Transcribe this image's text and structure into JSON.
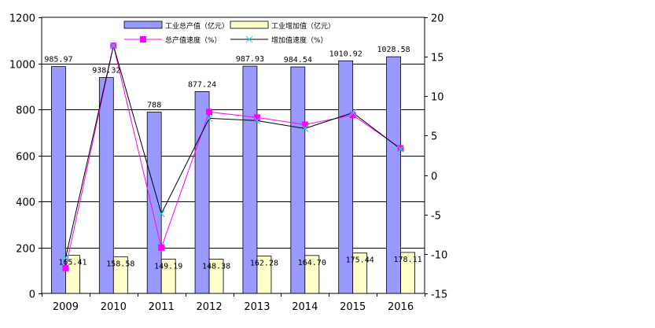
{
  "chart_data": {
    "type": "bar",
    "categories": [
      "2009",
      "2010",
      "2011",
      "2012",
      "2013",
      "2014",
      "2015",
      "2016"
    ],
    "series": [
      {
        "name": "工业总产值（亿元）",
        "kind": "bar",
        "axis": "left",
        "color": "#9999ff",
        "values": [
          985.97,
          938.32,
          788,
          877.24,
          987.93,
          984.54,
          1010.92,
          1028.58
        ],
        "labels": [
          "985.97",
          "938.32",
          "788",
          "877.24",
          "987.93",
          "984.54",
          "1010.92",
          "1028.58"
        ]
      },
      {
        "name": "工业增加值（亿元）",
        "kind": "bar",
        "axis": "left",
        "color": "#ffffcc",
        "values": [
          165.41,
          158.58,
          149.19,
          148.38,
          162.28,
          164.7,
          175.44,
          178.11
        ],
        "labels": [
          "165.41",
          "158.58",
          "149.19",
          "148.38",
          "162.28",
          "164.70",
          "175.44",
          "178.11"
        ]
      },
      {
        "name": "总产值速度（%）",
        "kind": "line",
        "axis": "right",
        "color": "#ff00ff",
        "values": [
          -11.8,
          16.4,
          -9.2,
          8.0,
          7.3,
          6.4,
          7.6,
          3.4
        ]
      },
      {
        "name": "增加值速度（%）",
        "kind": "line",
        "axis": "right",
        "color": "#000000",
        "marker_color": "#33cccc",
        "values": [
          -10.5,
          16.4,
          -4.9,
          7.2,
          6.9,
          5.9,
          7.9,
          3.3
        ]
      }
    ],
    "y_left": {
      "ylim": [
        0,
        1200
      ],
      "ticks": [
        0,
        200,
        400,
        600,
        800,
        1000,
        1200
      ]
    },
    "y_right": {
      "ylim": [
        -15,
        20
      ],
      "ticks": [
        -15,
        -10,
        -5,
        0,
        5,
        10,
        15,
        20
      ]
    },
    "grid": true,
    "legend": "top-center"
  }
}
